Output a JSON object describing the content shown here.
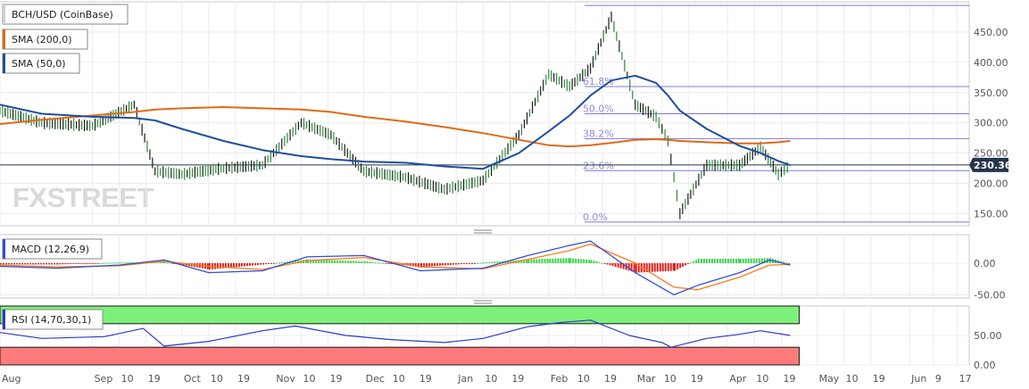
{
  "chart_data": [
    {
      "type": "line",
      "panel": "price",
      "legend": [
        {
          "label": "BCH/USD (CoinBase)",
          "color": "#d0d0d0"
        },
        {
          "label": "SMA (200,0)",
          "color": "#e06a14"
        },
        {
          "label": "SMA (50,0)",
          "color": "#1f4e9e"
        }
      ],
      "ylim": [
        130,
        500
      ],
      "yticks": [
        "150.00",
        "200.00",
        "250.00",
        "300.00",
        "350.00",
        "400.00",
        "450.00"
      ],
      "last_price": "230.36",
      "last_value": 230.36,
      "watermark": "FXSTREET",
      "x": [
        "2019-08-01",
        "2019-08-15",
        "2019-09-01",
        "2019-09-15",
        "2019-09-22",
        "2019-10-01",
        "2019-10-15",
        "2019-10-28",
        "2019-11-10",
        "2019-11-20",
        "2019-12-01",
        "2019-12-15",
        "2019-12-28",
        "2020-01-10",
        "2020-01-22",
        "2020-02-01",
        "2020-02-08",
        "2020-02-15",
        "2020-02-22",
        "2020-03-01",
        "2020-03-08",
        "2020-03-12",
        "2020-03-16",
        "2020-03-25",
        "2020-04-05",
        "2020-04-12",
        "2020-04-18",
        "2020-04-22"
      ],
      "series": [
        {
          "name": "BCH/USD (CoinBase)",
          "values": [
            320,
            300,
            295,
            330,
            220,
            215,
            225,
            230,
            300,
            280,
            220,
            210,
            190,
            205,
            280,
            380,
            360,
            390,
            475,
            330,
            310,
            270,
            150,
            230,
            230,
            260,
            215,
            230
          ]
        },
        {
          "name": "SMA (200,0)",
          "values": [
            298,
            305,
            312,
            318,
            322,
            324,
            326,
            324,
            322,
            318,
            310,
            302,
            293,
            283,
            272,
            263,
            261,
            263,
            267,
            272,
            273,
            272,
            270,
            268,
            266,
            266,
            268,
            270
          ]
        },
        {
          "name": "SMA (50,0)",
          "values": [
            330,
            315,
            310,
            308,
            304,
            290,
            270,
            255,
            245,
            240,
            236,
            234,
            228,
            224,
            250,
            286,
            312,
            345,
            370,
            378,
            366,
            345,
            320,
            290,
            262,
            250,
            237,
            230
          ]
        }
      ],
      "fibonacci": [
        {
          "label": "61.8%",
          "value": 360
        },
        {
          "label": "50.0%",
          "value": 315
        },
        {
          "label": "38.2%",
          "value": 274
        },
        {
          "label": "23.6%",
          "value": 221
        },
        {
          "label": "0.0%",
          "value": 136
        }
      ],
      "range_high": 494
    },
    {
      "type": "bar",
      "panel": "macd",
      "legend": {
        "label": "MACD (12,26,9)"
      },
      "ylim": [
        -55,
        45
      ],
      "yticks": [
        "-50.00",
        "0.00"
      ],
      "x": [
        "2019-08-01",
        "2019-08-20",
        "2019-09-10",
        "2019-09-25",
        "2019-10-10",
        "2019-10-28",
        "2019-11-12",
        "2019-12-01",
        "2019-12-20",
        "2020-01-10",
        "2020-01-25",
        "2020-02-08",
        "2020-02-15",
        "2020-03-01",
        "2020-03-14",
        "2020-03-22",
        "2020-04-05",
        "2020-04-15",
        "2020-04-22"
      ],
      "series": [
        {
          "name": "MACD line",
          "values": [
            -5,
            -8,
            -3,
            5,
            -15,
            -12,
            10,
            12,
            -12,
            -8,
            12,
            28,
            35,
            -15,
            -50,
            -35,
            -15,
            5,
            -3
          ]
        },
        {
          "name": "Signal line",
          "values": [
            -3,
            -6,
            -4,
            3,
            -5,
            -10,
            4,
            9,
            -6,
            -9,
            6,
            20,
            30,
            0,
            -38,
            -42,
            -22,
            -3,
            -2
          ]
        },
        {
          "name": "Histogram",
          "values": [
            -2,
            -2,
            1,
            2,
            -10,
            -2,
            6,
            3,
            -6,
            1,
            6,
            8,
            5,
            -15,
            -12,
            7,
            7,
            8,
            -1
          ]
        }
      ]
    },
    {
      "type": "line",
      "panel": "rsi",
      "legend": {
        "label": "RSI (14,70,30,1)"
      },
      "ylim": [
        0,
        100
      ],
      "yticks": [
        "0.00",
        "50.00"
      ],
      "overbought": 70,
      "oversold": 30,
      "x": [
        "2019-08-01",
        "2019-08-15",
        "2019-09-05",
        "2019-09-18",
        "2019-09-25",
        "2019-10-10",
        "2019-10-28",
        "2019-11-08",
        "2019-11-25",
        "2019-12-10",
        "2019-12-28",
        "2020-01-10",
        "2020-01-25",
        "2020-02-05",
        "2020-02-15",
        "2020-02-28",
        "2020-03-10",
        "2020-03-13",
        "2020-03-25",
        "2020-04-05",
        "2020-04-12",
        "2020-04-22"
      ],
      "series": [
        {
          "name": "RSI",
          "values": [
            55,
            45,
            48,
            62,
            32,
            40,
            58,
            66,
            50,
            43,
            38,
            45,
            65,
            72,
            76,
            50,
            38,
            30,
            45,
            52,
            58,
            50
          ]
        }
      ]
    }
  ],
  "x_axis": {
    "labels": [
      {
        "label": "Aug",
        "date": "2019-08-01"
      },
      {
        "label": "Sep",
        "date": "2019-09-01"
      },
      {
        "label": "10",
        "date": "2019-09-10"
      },
      {
        "label": "19",
        "date": "2019-09-19"
      },
      {
        "label": "Oct",
        "date": "2019-10-01"
      },
      {
        "label": "10",
        "date": "2019-10-10"
      },
      {
        "label": "19",
        "date": "2019-10-19"
      },
      {
        "label": "Nov",
        "date": "2019-11-01"
      },
      {
        "label": "10",
        "date": "2019-11-10"
      },
      {
        "label": "19",
        "date": "2019-11-19"
      },
      {
        "label": "Dec",
        "date": "2019-12-01"
      },
      {
        "label": "10",
        "date": "2019-12-10"
      },
      {
        "label": "19",
        "date": "2019-12-19"
      },
      {
        "label": "Jan",
        "date": "2020-01-01"
      },
      {
        "label": "10",
        "date": "2020-01-10"
      },
      {
        "label": "19",
        "date": "2020-01-19"
      },
      {
        "label": "Feb",
        "date": "2020-02-01"
      },
      {
        "label": "10",
        "date": "2020-02-10"
      },
      {
        "label": "19",
        "date": "2020-02-19"
      },
      {
        "label": "Mar",
        "date": "2020-03-01"
      },
      {
        "label": "10",
        "date": "2020-03-10"
      },
      {
        "label": "19",
        "date": "2020-03-19"
      },
      {
        "label": "Apr",
        "date": "2020-04-01"
      },
      {
        "label": "10",
        "date": "2020-04-10"
      },
      {
        "label": "19",
        "date": "2020-04-19"
      },
      {
        "label": "May",
        "date": "2020-05-01"
      },
      {
        "label": "10",
        "date": "2020-05-10"
      },
      {
        "label": "19",
        "date": "2020-05-19"
      },
      {
        "label": "Jun",
        "date": "2020-06-01"
      },
      {
        "label": "9",
        "date": "2020-06-09"
      },
      {
        "label": "17",
        "date": "2020-06-17"
      }
    ],
    "start": "2019-08-01",
    "end": "2020-06-21"
  },
  "colors": {
    "price": "#1a1a1a",
    "up_candle": "#2d8a3a",
    "sma200": "#e06a14",
    "sma50": "#1f4e9e",
    "fibonacci": "#7b78d8",
    "macd_line": "#2f4fd8",
    "signal_line": "#ff7a1a",
    "hist_pos": "#3fd24a",
    "hist_neg": "#e0201b",
    "rsi_line": "#2a3ad0",
    "overbought_zone": "#7df07a",
    "oversold_zone": "#ff7b7b",
    "last_price_badge": "#26344a"
  }
}
